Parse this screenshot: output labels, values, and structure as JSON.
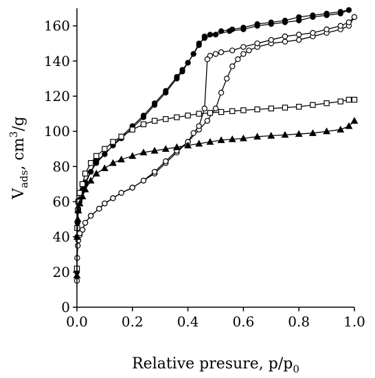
{
  "chart_data": {
    "type": "line",
    "xlabel": "Relative presure, p/p0",
    "ylabel": "Vads, cm3/g",
    "xlim": [
      0,
      1
    ],
    "ylim": [
      0,
      170
    ],
    "xticks": [
      "0.0",
      "0.2",
      "0.4",
      "0.6",
      "0.8",
      "1.0"
    ],
    "yticks": [
      "0",
      "20",
      "40",
      "60",
      "80",
      "100",
      "120",
      "140",
      "160"
    ],
    "grid": false,
    "legend": "none",
    "series": [
      {
        "marker": "filled-circle",
        "branch": "adsorption",
        "points": [
          [
            0.0,
            20
          ],
          [
            0.001,
            40
          ],
          [
            0.002,
            48
          ],
          [
            0.005,
            55
          ],
          [
            0.01,
            60
          ],
          [
            0.02,
            66
          ],
          [
            0.03,
            70
          ],
          [
            0.05,
            77
          ],
          [
            0.07,
            83
          ],
          [
            0.1,
            87
          ],
          [
            0.13,
            92
          ],
          [
            0.16,
            96
          ],
          [
            0.2,
            102
          ],
          [
            0.24,
            108
          ],
          [
            0.28,
            115
          ],
          [
            0.32,
            122
          ],
          [
            0.36,
            130
          ],
          [
            0.38,
            134
          ],
          [
            0.4,
            139
          ],
          [
            0.42,
            144
          ],
          [
            0.44,
            150
          ],
          [
            0.46,
            153
          ],
          [
            0.5,
            155
          ],
          [
            0.55,
            157
          ],
          [
            0.6,
            158
          ],
          [
            0.65,
            160
          ],
          [
            0.7,
            161
          ],
          [
            0.75,
            162
          ],
          [
            0.8,
            163
          ],
          [
            0.85,
            165
          ],
          [
            0.9,
            166
          ],
          [
            0.95,
            167
          ],
          [
            0.98,
            169
          ]
        ]
      },
      {
        "marker": "filled-circle",
        "branch": "desorption",
        "points": [
          [
            0.98,
            169
          ],
          [
            0.95,
            168
          ],
          [
            0.9,
            167
          ],
          [
            0.85,
            166
          ],
          [
            0.8,
            165
          ],
          [
            0.75,
            163
          ],
          [
            0.7,
            162
          ],
          [
            0.65,
            161
          ],
          [
            0.6,
            159
          ],
          [
            0.56,
            158
          ],
          [
            0.52,
            157
          ],
          [
            0.48,
            155
          ],
          [
            0.46,
            154
          ],
          [
            0.44,
            149
          ],
          [
            0.42,
            144
          ],
          [
            0.4,
            139
          ],
          [
            0.38,
            135
          ],
          [
            0.36,
            131
          ],
          [
            0.32,
            123
          ],
          [
            0.28,
            116
          ],
          [
            0.24,
            109
          ],
          [
            0.2,
            103
          ],
          [
            0.16,
            97
          ],
          [
            0.13,
            92
          ],
          [
            0.1,
            87
          ],
          [
            0.07,
            82
          ],
          [
            0.05,
            77
          ],
          [
            0.03,
            71
          ],
          [
            0.02,
            67
          ],
          [
            0.01,
            61
          ],
          [
            0.005,
            56
          ]
        ]
      },
      {
        "marker": "open-circle",
        "branch": "adsorption",
        "points": [
          [
            0.0,
            15
          ],
          [
            0.001,
            28
          ],
          [
            0.003,
            35
          ],
          [
            0.005,
            38
          ],
          [
            0.01,
            41
          ],
          [
            0.02,
            44
          ],
          [
            0.03,
            48
          ],
          [
            0.05,
            52
          ],
          [
            0.08,
            56
          ],
          [
            0.1,
            59
          ],
          [
            0.13,
            62
          ],
          [
            0.16,
            65
          ],
          [
            0.2,
            68
          ],
          [
            0.24,
            72
          ],
          [
            0.28,
            76
          ],
          [
            0.32,
            82
          ],
          [
            0.36,
            88
          ],
          [
            0.4,
            94
          ],
          [
            0.44,
            101
          ],
          [
            0.47,
            106
          ],
          [
            0.5,
            113
          ],
          [
            0.52,
            122
          ],
          [
            0.54,
            130
          ],
          [
            0.56,
            137
          ],
          [
            0.58,
            141
          ],
          [
            0.6,
            144
          ],
          [
            0.62,
            146
          ],
          [
            0.65,
            148
          ],
          [
            0.7,
            150
          ],
          [
            0.75,
            151
          ],
          [
            0.8,
            152
          ],
          [
            0.85,
            154
          ],
          [
            0.9,
            156
          ],
          [
            0.95,
            158
          ],
          [
            0.98,
            160
          ],
          [
            1.0,
            165
          ]
        ]
      },
      {
        "marker": "open-circle",
        "branch": "desorption",
        "points": [
          [
            1.0,
            165
          ],
          [
            0.98,
            162
          ],
          [
            0.95,
            160
          ],
          [
            0.9,
            158
          ],
          [
            0.85,
            156
          ],
          [
            0.8,
            155
          ],
          [
            0.75,
            154
          ],
          [
            0.7,
            152
          ],
          [
            0.65,
            150
          ],
          [
            0.6,
            148
          ],
          [
            0.56,
            146
          ],
          [
            0.52,
            145
          ],
          [
            0.5,
            144
          ],
          [
            0.48,
            143
          ],
          [
            0.47,
            141
          ],
          [
            0.46,
            113
          ],
          [
            0.44,
            103
          ],
          [
            0.42,
            99
          ],
          [
            0.4,
            94
          ],
          [
            0.36,
            89
          ],
          [
            0.32,
            83
          ],
          [
            0.28,
            77
          ],
          [
            0.24,
            72
          ],
          [
            0.2,
            68
          ],
          [
            0.16,
            65
          ],
          [
            0.13,
            62
          ],
          [
            0.1,
            59
          ],
          [
            0.08,
            56
          ],
          [
            0.05,
            52
          ],
          [
            0.03,
            48
          ],
          [
            0.02,
            44
          ],
          [
            0.01,
            42
          ]
        ]
      },
      {
        "marker": "open-square",
        "branch": "adsorption",
        "points": [
          [
            0.0,
            22
          ],
          [
            0.001,
            45
          ],
          [
            0.003,
            55
          ],
          [
            0.005,
            60
          ],
          [
            0.01,
            65
          ],
          [
            0.02,
            70
          ],
          [
            0.03,
            76
          ],
          [
            0.05,
            82
          ],
          [
            0.07,
            86
          ],
          [
            0.1,
            90
          ],
          [
            0.13,
            94
          ],
          [
            0.16,
            97
          ],
          [
            0.2,
            101
          ],
          [
            0.24,
            104
          ],
          [
            0.28,
            106
          ],
          [
            0.32,
            107
          ],
          [
            0.36,
            108
          ],
          [
            0.4,
            109
          ],
          [
            0.44,
            110
          ],
          [
            0.48,
            110.5
          ],
          [
            0.52,
            111
          ],
          [
            0.56,
            111.5
          ],
          [
            0.6,
            112
          ],
          [
            0.65,
            112.5
          ],
          [
            0.7,
            113
          ],
          [
            0.75,
            113.5
          ],
          [
            0.8,
            114
          ],
          [
            0.85,
            115
          ],
          [
            0.9,
            116
          ],
          [
            0.95,
            117
          ],
          [
            0.98,
            118
          ],
          [
            1.0,
            118
          ]
        ]
      },
      {
        "marker": "filled-triangle",
        "branch": "adsorption",
        "points": [
          [
            0.0,
            18
          ],
          [
            0.001,
            40
          ],
          [
            0.003,
            50
          ],
          [
            0.005,
            55
          ],
          [
            0.01,
            59
          ],
          [
            0.02,
            63
          ],
          [
            0.03,
            67
          ],
          [
            0.05,
            72
          ],
          [
            0.07,
            76
          ],
          [
            0.1,
            79
          ],
          [
            0.13,
            82
          ],
          [
            0.16,
            84
          ],
          [
            0.2,
            86
          ],
          [
            0.24,
            88
          ],
          [
            0.28,
            89
          ],
          [
            0.32,
            90
          ],
          [
            0.36,
            91
          ],
          [
            0.4,
            92
          ],
          [
            0.44,
            93
          ],
          [
            0.48,
            94
          ],
          [
            0.52,
            95
          ],
          [
            0.56,
            95.5
          ],
          [
            0.6,
            96
          ],
          [
            0.65,
            97
          ],
          [
            0.7,
            97.5
          ],
          [
            0.75,
            98
          ],
          [
            0.8,
            98.5
          ],
          [
            0.85,
            99
          ],
          [
            0.9,
            100
          ],
          [
            0.95,
            101
          ],
          [
            0.98,
            103
          ],
          [
            1.0,
            106
          ]
        ]
      }
    ]
  }
}
